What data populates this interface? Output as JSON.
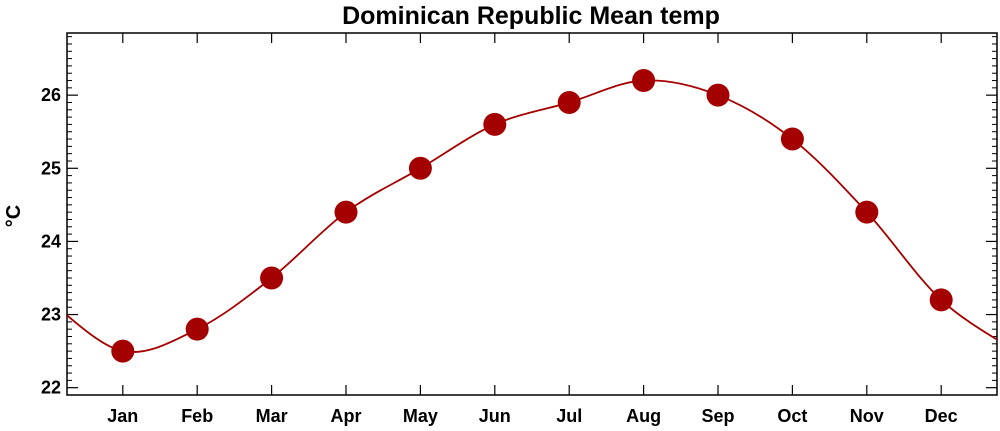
{
  "chart_data": {
    "type": "line",
    "title": "Dominican Republic Mean temp",
    "ylabel": "°C",
    "xlabel": "",
    "categories": [
      "Jan",
      "Feb",
      "Mar",
      "Apr",
      "May",
      "Jun",
      "Jul",
      "Aug",
      "Sep",
      "Oct",
      "Nov",
      "Dec"
    ],
    "series": [
      {
        "values": [
          22.5,
          22.8,
          23.5,
          24.4,
          25.0,
          25.6,
          25.9,
          26.2,
          26.0,
          25.4,
          24.4,
          23.2
        ]
      }
    ],
    "ylim": [
      21.9,
      26.85
    ],
    "yticks": [
      22,
      23,
      24,
      25,
      26
    ],
    "ytick_labels": [
      "22",
      "23",
      "24",
      "25",
      "26"
    ],
    "grid": false,
    "legend": "none",
    "colors": {
      "line": "#a50000",
      "marker": "#a50000",
      "axis": "#000000"
    },
    "curve_wraps_around_year": true
  }
}
